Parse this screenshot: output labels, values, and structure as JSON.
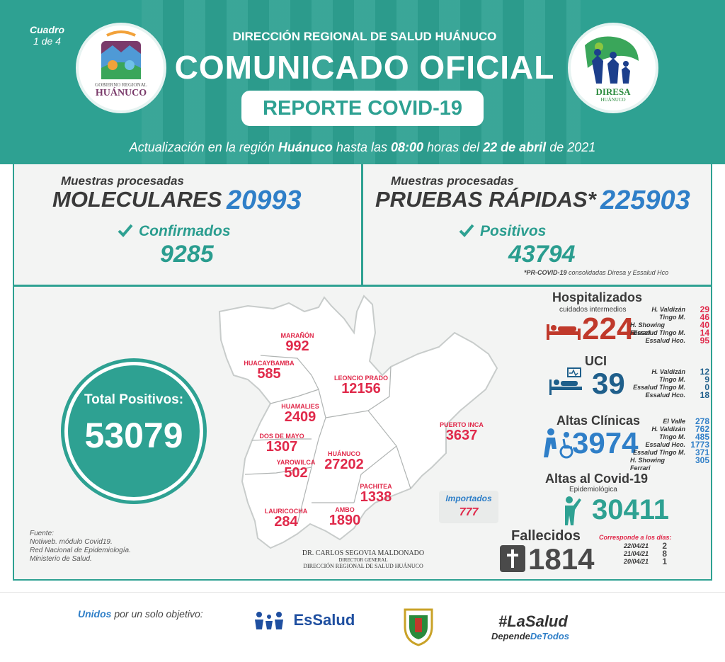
{
  "header": {
    "cuadro": "Cuadro",
    "cuadro_num": "1 de 4",
    "direccion": "DIRECCIÓN REGIONAL DE SALUD HUÁNUCO",
    "title": "COMUNICADO OFICIAL",
    "subtitle": "REPORTE COVID-19",
    "update_prefix": "Actualización en la región",
    "update_region": "Huánuco",
    "update_mid": "hasta las",
    "update_time": "08:00",
    "update_mid2": "horas del",
    "update_date": "22 de abril",
    "update_year": "de 2021",
    "logo_left_line1": "GOBIERNO REGIONAL",
    "logo_left_line2": "HUÁNUCO",
    "logo_right_line1": "DIRESA",
    "logo_right_line2": "HUÁNUCO"
  },
  "moleculares": {
    "caption": "Muestras procesadas",
    "label": "MOLECULARES",
    "value": "20993",
    "sub_label": "Confirmados",
    "sub_value": "9285"
  },
  "rapidas": {
    "caption": "Muestras procesadas",
    "label": "PRUEBAS RÁPIDAS*",
    "value": "225903",
    "sub_label": "Positivos",
    "sub_value": "43794",
    "note_bold": "*PR-COVID-19",
    "note_rest": "consolidadas Diresa y Essalud Hco"
  },
  "total": {
    "label": "Total Positivos:",
    "value": "53079"
  },
  "provinces": [
    {
      "name": "MARAÑÓN",
      "value": "992"
    },
    {
      "name": "HUACAYBAMBA",
      "value": "585"
    },
    {
      "name": "LEONCIO PRADO",
      "value": "12156"
    },
    {
      "name": "HUAMALIES",
      "value": "2409"
    },
    {
      "name": "DOS DE MAYO",
      "value": "1307"
    },
    {
      "name": "YAROWILCA",
      "value": "502"
    },
    {
      "name": "HUÁNUCO",
      "value": "27202"
    },
    {
      "name": "PUERTO INCA",
      "value": "3637"
    },
    {
      "name": "PACHITEA",
      "value": "1338"
    },
    {
      "name": "LAURICOCHA",
      "value": "284"
    },
    {
      "name": "AMBO",
      "value": "1890"
    }
  ],
  "importados": {
    "label": "Importados",
    "value": "777"
  },
  "signature": {
    "name": "DR. CARLOS SEGOVIA MALDONADO",
    "role": "DIRECTOR GENERAL",
    "org": "DIRECCIÓN REGIONAL DE SALUD HUÁNUCO"
  },
  "fuente": {
    "title": "Fuente:",
    "lines": [
      "Notiweb. módulo Covid19.",
      "Red Nacional de Epidemiología.",
      "Ministerio de Salud."
    ]
  },
  "hospitalizados": {
    "title": "Hospitalizados",
    "subtitle": "cuidados intermedios",
    "value": "224",
    "rows": [
      {
        "name": "H. Valdizán",
        "value": "29"
      },
      {
        "name": "Tingo M.",
        "value": "46"
      },
      {
        "name": "H. Showing Ferrari",
        "value": "40"
      },
      {
        "name": "Essalud Tingo M.",
        "value": "14"
      },
      {
        "name": "Essalud Hco.",
        "value": "95"
      }
    ]
  },
  "uci": {
    "title": "UCI",
    "value": "39",
    "rows": [
      {
        "name": "H. Valdizán",
        "value": "12"
      },
      {
        "name": "Tingo M.",
        "value": "9"
      },
      {
        "name": "Essalud Tingo M.",
        "value": "0"
      },
      {
        "name": "Essalud Hco.",
        "value": "18"
      }
    ]
  },
  "altas_clinicas": {
    "title": "Altas Clínicas",
    "value": "3974",
    "rows": [
      {
        "name": "El Valle",
        "value": "278"
      },
      {
        "name": "H. Valdizán",
        "value": "762"
      },
      {
        "name": "Tingo M.",
        "value": "485"
      },
      {
        "name": "Essalud Hco.",
        "value": "1773"
      },
      {
        "name": "Essalud Tingo M.",
        "value": "371"
      },
      {
        "name": "H. Showing Ferrari",
        "value": "305"
      }
    ]
  },
  "altas_covid": {
    "title": "Altas al Covid-19",
    "subtitle": "Epidemiológica",
    "value": "30411"
  },
  "fallecidos": {
    "title": "Fallecidos",
    "value": "1814",
    "days_title": "Corresponde a los días:",
    "days": [
      {
        "date": "22/04/21",
        "value": "2"
      },
      {
        "date": "21/04/21",
        "value": "8"
      },
      {
        "date": "20/04/21",
        "value": "1"
      }
    ]
  },
  "footer": {
    "unidos_bold": "Unidos",
    "unidos_rest": "por un solo objetivo:",
    "essalud": "EsSalud",
    "hashtag": "#LaSalud",
    "hashtag_sub1": "Depende",
    "hashtag_sub2": "DeTodos"
  },
  "colors": {
    "teal": "#2ea192",
    "red": "#e0294a",
    "blue": "#2f7fc8",
    "dark": "#3a3a3a"
  }
}
